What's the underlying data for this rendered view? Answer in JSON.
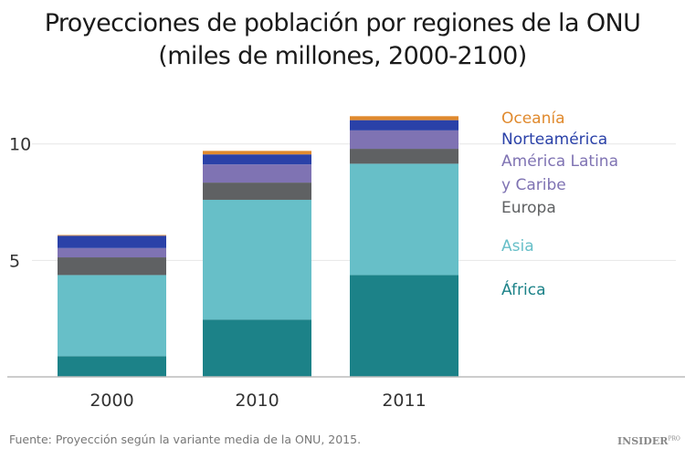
{
  "chart_data": {
    "type": "bar",
    "stacked": true,
    "title": "Proyecciones de población por regiones de la ONU",
    "subtitle": "(miles de millones, 2000-2100)",
    "categories": [
      "2000",
      "2010",
      "2011"
    ],
    "yticks": [
      5,
      10
    ],
    "ylim": [
      0,
      12.5
    ],
    "grid": true,
    "legend_placement": "right",
    "series": [
      {
        "name": "África",
        "color": "#1c8288",
        "values": [
          0.89,
          2.46,
          4.37
        ]
      },
      {
        "name": "Asia",
        "color": "#67bfc8",
        "values": [
          3.48,
          5.14,
          4.78
        ]
      },
      {
        "name": "Europa",
        "color": "#5f6163",
        "values": [
          0.76,
          0.74,
          0.64
        ]
      },
      {
        "name": "América Latina y Caribe",
        "color": "#7f73b3",
        "values": [
          0.4,
          0.78,
          0.79
        ]
      },
      {
        "name": "Norteamérica",
        "color": "#2a41a8",
        "values": [
          0.53,
          0.43,
          0.44
        ]
      },
      {
        "name": "Oceanía",
        "color": "#e08a2e",
        "values": [
          0.03,
          0.15,
          0.17
        ]
      }
    ],
    "legend_lines": [
      {
        "text": "Oceanía",
        "color": "#e08a2e"
      },
      {
        "text": "Norteamérica",
        "color": "#2a41a8"
      },
      {
        "text": "América Latina",
        "color": "#7f73b3"
      },
      {
        "text": "y Caribe",
        "color": "#7f73b3"
      },
      {
        "text": "Europa",
        "color": "#5f6163"
      },
      {
        "text": "Asia",
        "color": "#67bfc8"
      },
      {
        "text": "África",
        "color": "#1c8288"
      }
    ]
  },
  "source": "Fuente: Proyección según la variante media de la ONU, 2015.",
  "logo": {
    "main": "INSIDER",
    "sup": "PRO"
  }
}
